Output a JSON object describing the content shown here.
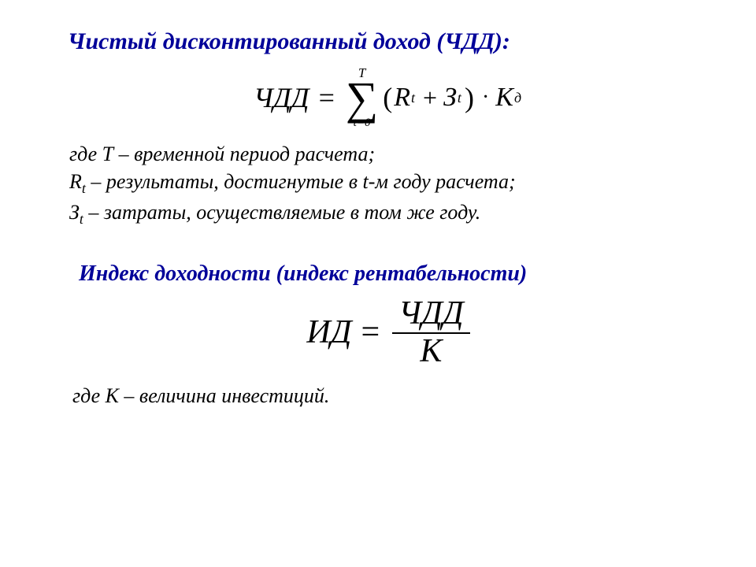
{
  "colors": {
    "heading": "#000099",
    "text": "#000000",
    "background": "#ffffff"
  },
  "section1": {
    "title": "Чистый дисконтированный доход (ЧДД):",
    "formula": {
      "lhs": "ЧДД",
      "eq": "=",
      "sum_upper": "T",
      "sigma": "∑",
      "sum_lower": "t=0",
      "lparen": "(",
      "R": "R",
      "R_sub": "t",
      "plus": "+",
      "Z": "З",
      "Z_sub": "t",
      "rparen": ")",
      "dot": "·",
      "K": "K",
      "K_sub": "д"
    },
    "desc_line1_a": "где Т – временной период расчета;",
    "desc_line2_a": "R",
    "desc_line2_sub": "t",
    "desc_line2_b": " – результаты, достигнутые в t-м году расчета;",
    "desc_line3_a": "З",
    "desc_line3_sub": "t",
    "desc_line3_b": " – затраты, осуществляемые в том же году."
  },
  "section2": {
    "title": "Индекс доходности (индекс рентабельности)",
    "formula": {
      "lhs": "ИД",
      "eq": "=",
      "numerator": "ЧДД",
      "denominator": "К"
    },
    "desc": "где К – величина инвестиций."
  }
}
